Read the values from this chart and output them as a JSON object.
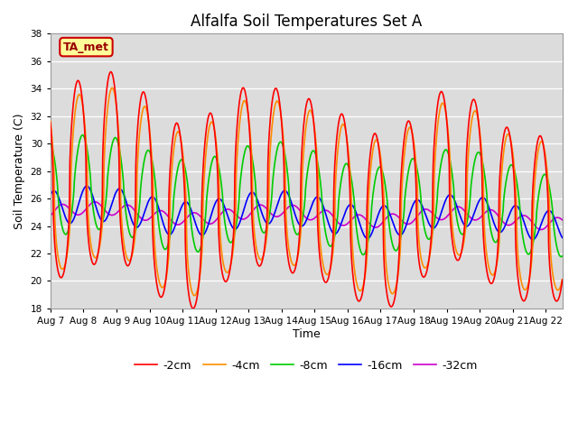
{
  "title": "Alfalfa Soil Temperatures Set A",
  "ylabel": "Soil Temperature (C)",
  "xlabel": "Time",
  "ylim": [
    18,
    38
  ],
  "yticks": [
    18,
    20,
    22,
    24,
    26,
    28,
    30,
    32,
    34,
    36,
    38
  ],
  "background_color": "#dcdcdc",
  "figure_color": "#ffffff",
  "lines": {
    "-2cm": {
      "color": "#ff0000",
      "lw": 1.2
    },
    "-4cm": {
      "color": "#ff8c00",
      "lw": 1.2
    },
    "-8cm": {
      "color": "#00cc00",
      "lw": 1.2
    },
    "-16cm": {
      "color": "#0000ff",
      "lw": 1.2
    },
    "-32cm": {
      "color": "#cc00cc",
      "lw": 1.2
    }
  },
  "annotation": "TA_met",
  "annotation_bg": "#ffff99",
  "annotation_border": "#cc0000",
  "n_points": 1500
}
